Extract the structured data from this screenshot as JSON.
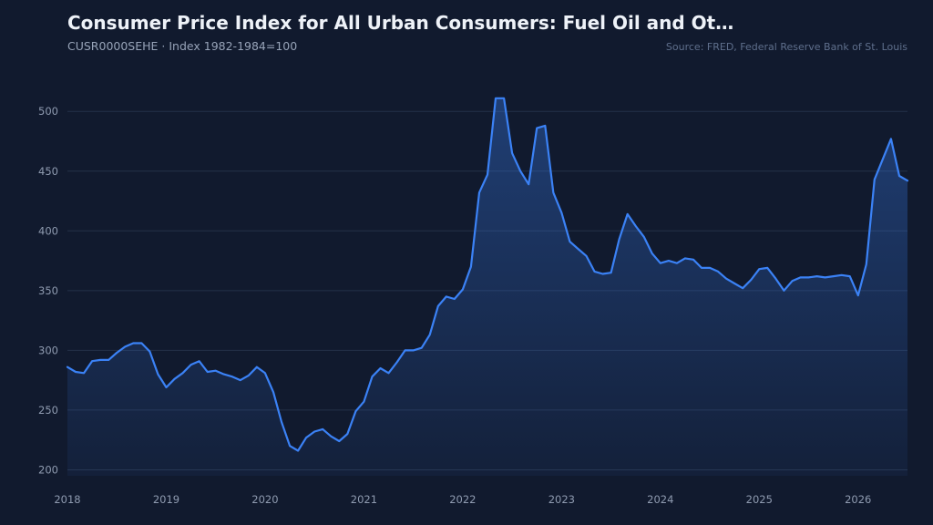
{
  "header": {
    "title": "Consumer Price Index for All Urban Consumers: Fuel Oil and Ot…",
    "subtitle": "CUSR0000SEHE · Index 1982-1984=100",
    "source": "Source: FRED, Federal Reserve Bank of St. Louis"
  },
  "colors": {
    "background": "#111a2e",
    "line": "#3b82f6",
    "grid": "#243149"
  },
  "chart_data": {
    "type": "area",
    "title": "Consumer Price Index for All Urban Consumers: Fuel Oil and Ot…",
    "subtitle": "CUSR0000SEHE · Index 1982-1984=100",
    "xlabel": "",
    "ylabel": "",
    "ylim": [
      195,
      520
    ],
    "yticks": [
      200,
      250,
      300,
      350,
      400,
      450,
      500
    ],
    "xlim": [
      2018.0,
      2026.5
    ],
    "xticks": [
      "2018",
      "2019",
      "2020",
      "2021",
      "2022",
      "2023",
      "2024",
      "2025",
      "2026"
    ],
    "grid": true,
    "legend": "none",
    "series": [
      {
        "x": [
          "2018-01",
          "2018-02",
          "2018-03",
          "2018-04",
          "2018-05",
          "2018-06",
          "2018-07",
          "2018-08",
          "2018-09",
          "2018-10",
          "2018-11",
          "2018-12",
          "2019-01",
          "2019-02",
          "2019-03",
          "2019-04",
          "2019-05",
          "2019-06",
          "2019-07",
          "2019-08",
          "2019-09",
          "2019-10",
          "2019-11",
          "2019-12",
          "2020-01",
          "2020-02",
          "2020-03",
          "2020-04",
          "2020-05",
          "2020-06",
          "2020-07",
          "2020-08",
          "2020-09",
          "2020-10",
          "2020-11",
          "2020-12",
          "2021-01",
          "2021-02",
          "2021-03",
          "2021-04",
          "2021-05",
          "2021-06",
          "2021-07",
          "2021-08",
          "2021-09",
          "2021-10",
          "2021-11",
          "2021-12",
          "2022-01",
          "2022-02",
          "2022-03",
          "2022-04",
          "2022-05",
          "2022-06",
          "2022-07",
          "2022-08",
          "2022-09",
          "2022-10",
          "2022-11",
          "2022-12",
          "2023-01",
          "2023-02",
          "2023-03",
          "2023-04",
          "2023-05",
          "2023-06",
          "2023-07",
          "2023-08",
          "2023-09",
          "2023-10",
          "2023-11",
          "2023-12",
          "2024-01",
          "2024-02",
          "2024-03",
          "2024-04",
          "2024-05",
          "2024-06",
          "2024-07",
          "2024-08",
          "2024-09",
          "2024-10",
          "2024-11",
          "2024-12",
          "2025-01",
          "2025-02",
          "2025-03",
          "2025-04",
          "2025-05",
          "2025-06",
          "2025-07",
          "2025-08",
          "2025-09",
          "2025-10",
          "2025-11",
          "2025-12",
          "2026-01",
          "2026-02",
          "2026-03",
          "2026-04",
          "2026-05",
          "2026-06",
          "2026-07"
        ],
        "values": [
          286,
          282,
          281,
          291,
          292,
          292,
          298,
          303,
          306,
          306,
          299,
          280,
          269,
          276,
          281,
          288,
          291,
          282,
          283,
          280,
          278,
          275,
          279,
          286,
          281,
          265,
          240,
          220,
          216,
          227,
          232,
          234,
          228,
          224,
          230,
          249,
          257,
          278,
          285,
          281,
          290,
          300,
          300,
          302,
          313,
          337,
          345,
          343,
          351,
          370,
          432,
          447,
          511,
          511,
          465,
          450,
          439,
          486,
          488,
          432,
          415,
          391,
          385,
          379,
          366,
          364,
          365,
          393,
          414,
          404,
          395,
          381,
          373,
          375,
          373,
          377,
          376,
          369,
          369,
          366,
          360,
          356,
          352,
          359,
          368,
          369,
          360,
          350,
          358,
          361,
          361,
          362,
          361,
          362,
          363,
          362,
          346,
          372,
          443,
          460,
          477,
          446,
          442
        ]
      }
    ]
  }
}
